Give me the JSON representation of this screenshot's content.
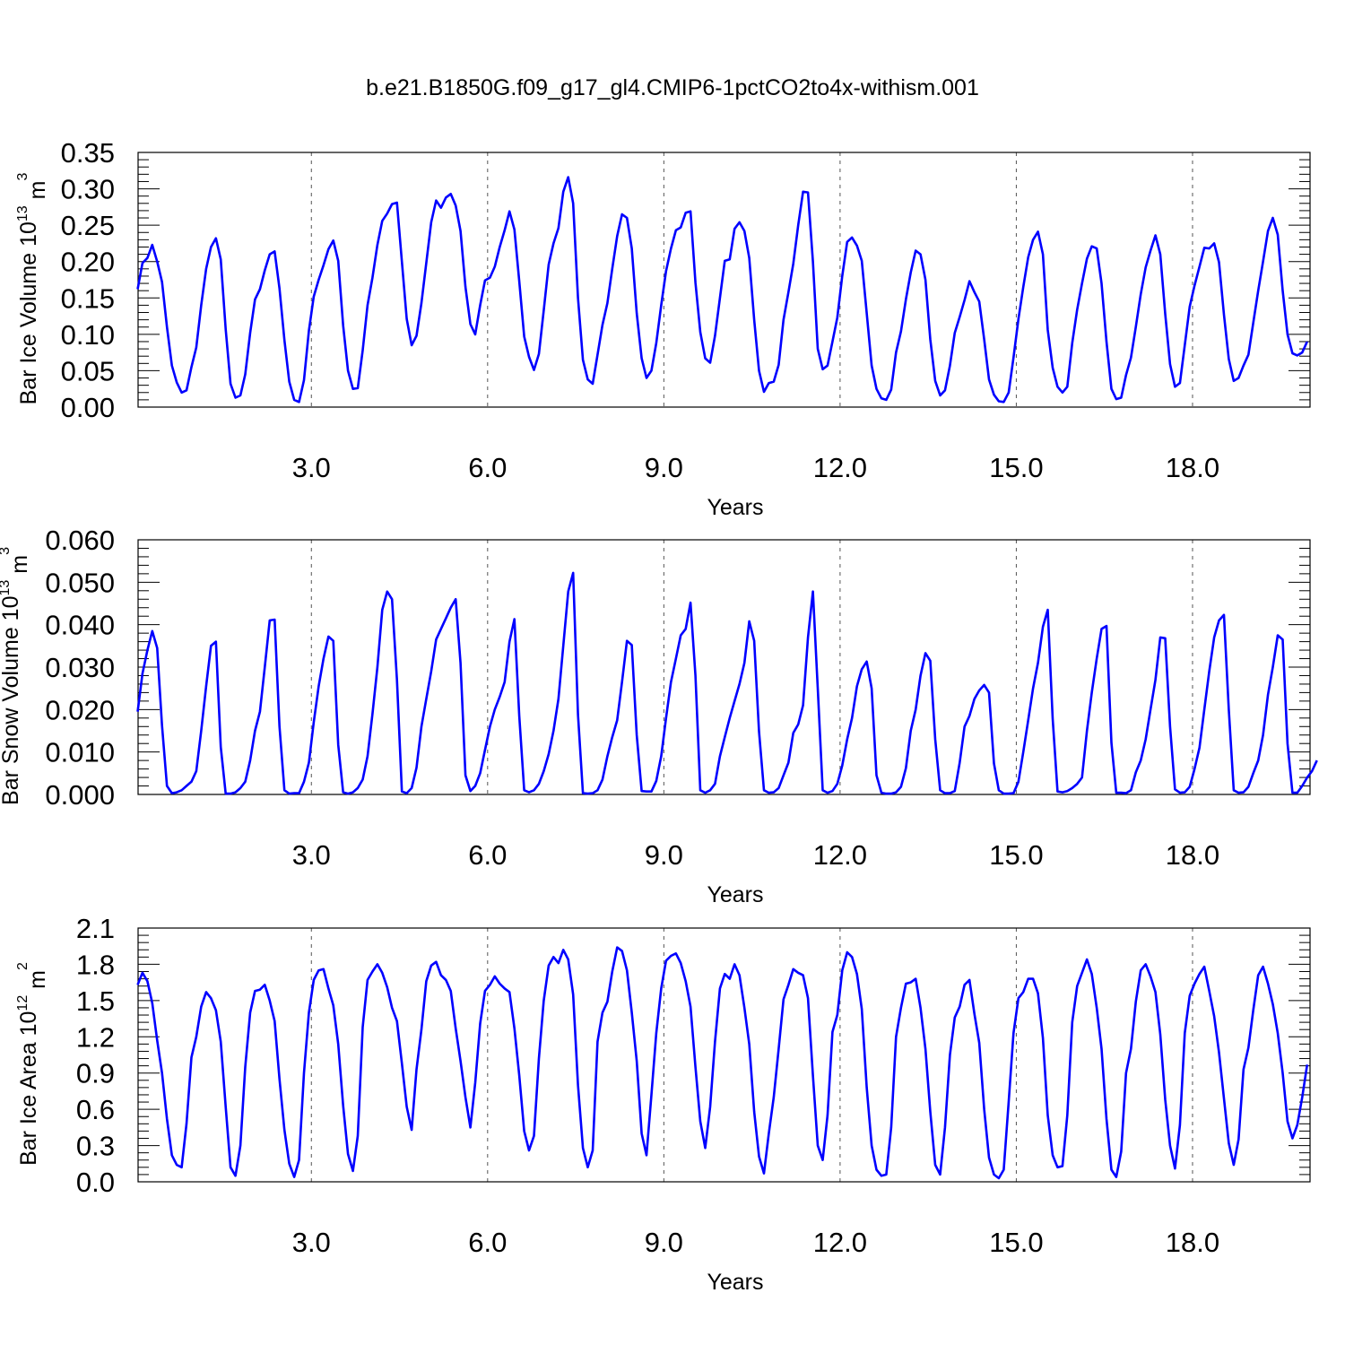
{
  "title": "b.e21.B1850G.f09_g17_gl4.CMIP6-1pctCO2to4x-withism.001",
  "colors": {
    "series": "#0000ff",
    "axis": "#000000",
    "grid": "#555555"
  },
  "chart_data": [
    {
      "type": "line",
      "xlabel": "Years",
      "ylabel": "Bar Ice Volume 10",
      "ylabel_exp": "13",
      "ylabel_unit": "m",
      "ylabel_unit_exp": "3",
      "xlim": [
        0.05,
        20.0
      ],
      "xticks": [
        "3.0",
        "6.0",
        "9.0",
        "12.0",
        "15.0",
        "18.0"
      ],
      "xtick_values": [
        3,
        6,
        9,
        12,
        15,
        18
      ],
      "ylim": [
        0,
        0.35
      ],
      "yticks": [
        "0.00",
        "0.05",
        "0.10",
        "0.15",
        "0.20",
        "0.25",
        "0.30",
        "0.35"
      ],
      "ytick_values": [
        0,
        0.05,
        0.1,
        0.15,
        0.2,
        0.25,
        0.3,
        0.35
      ],
      "grid": "dashed vertical lines at major x ticks",
      "series": [
        {
          "x_start": 0.0417,
          "x_step": 0.0833,
          "values": [
            0.162,
            0.198,
            0.205,
            0.223,
            0.2,
            0.172,
            0.11,
            0.057,
            0.034,
            0.02,
            0.023,
            0.055,
            0.082,
            0.14,
            0.19,
            0.22,
            0.232,
            0.203,
            0.107,
            0.032,
            0.013,
            0.016,
            0.045,
            0.102,
            0.148,
            0.162,
            0.188,
            0.21,
            0.214,
            0.163,
            0.092,
            0.035,
            0.01,
            0.007,
            0.037,
            0.105,
            0.152,
            0.175,
            0.195,
            0.217,
            0.229,
            0.201,
            0.112,
            0.05,
            0.025,
            0.026,
            0.078,
            0.14,
            0.178,
            0.223,
            0.256,
            0.266,
            0.279,
            0.281,
            0.2,
            0.121,
            0.085,
            0.098,
            0.143,
            0.198,
            0.254,
            0.284,
            0.274,
            0.288,
            0.293,
            0.277,
            0.242,
            0.165,
            0.114,
            0.1,
            0.14,
            0.174,
            0.178,
            0.193,
            0.22,
            0.243,
            0.269,
            0.244,
            0.173,
            0.097,
            0.069,
            0.051,
            0.073,
            0.133,
            0.196,
            0.225,
            0.246,
            0.296,
            0.316,
            0.28,
            0.15,
            0.065,
            0.038,
            0.032,
            0.072,
            0.113,
            0.143,
            0.19,
            0.235,
            0.265,
            0.26,
            0.218,
            0.129,
            0.067,
            0.04,
            0.05,
            0.088,
            0.14,
            0.187,
            0.218,
            0.243,
            0.247,
            0.267,
            0.269,
            0.171,
            0.103,
            0.067,
            0.061,
            0.098,
            0.15,
            0.201,
            0.203,
            0.245,
            0.254,
            0.242,
            0.205,
            0.12,
            0.05,
            0.021,
            0.033,
            0.035,
            0.058,
            0.12,
            0.158,
            0.197,
            0.25,
            0.296,
            0.295,
            0.2,
            0.08,
            0.052,
            0.057,
            0.09,
            0.123,
            0.18,
            0.227,
            0.233,
            0.222,
            0.201,
            0.129,
            0.057,
            0.025,
            0.012,
            0.01,
            0.024,
            0.075,
            0.104,
            0.148,
            0.185,
            0.215,
            0.21,
            0.175,
            0.093,
            0.036,
            0.016,
            0.023,
            0.057,
            0.102,
            0.124,
            0.147,
            0.173,
            0.158,
            0.145,
            0.093,
            0.038,
            0.017,
            0.008,
            0.007,
            0.02,
            0.068,
            0.121,
            0.165,
            0.206,
            0.23,
            0.241,
            0.21,
            0.106,
            0.054,
            0.028,
            0.02,
            0.028,
            0.088,
            0.134,
            0.17,
            0.204,
            0.221,
            0.218,
            0.17,
            0.09,
            0.025,
            0.011,
            0.013,
            0.044,
            0.068,
            0.11,
            0.155,
            0.192,
            0.215,
            0.236,
            0.21,
            0.128,
            0.059,
            0.028,
            0.033,
            0.085,
            0.138,
            0.167,
            0.193,
            0.219,
            0.218,
            0.225,
            0.199,
            0.127,
            0.066,
            0.036,
            0.04,
            0.057,
            0.072,
            0.116,
            0.16,
            0.2,
            0.242,
            0.26,
            0.237,
            0.16,
            0.1,
            0.074,
            0.071,
            0.075,
            0.09
          ]
        }
      ]
    },
    {
      "type": "line",
      "xlabel": "Years",
      "ylabel": "Bar Snow Volume 10",
      "ylabel_exp": "13",
      "ylabel_unit": "m",
      "ylabel_unit_exp": "3",
      "xlim": [
        0.05,
        20.0
      ],
      "xticks": [
        "3.0",
        "6.0",
        "9.0",
        "12.0",
        "15.0",
        "18.0"
      ],
      "xtick_values": [
        3,
        6,
        9,
        12,
        15,
        18
      ],
      "ylim": [
        0,
        0.06
      ],
      "yticks": [
        "0.000",
        "0.010",
        "0.020",
        "0.030",
        "0.040",
        "0.050",
        "0.060"
      ],
      "ytick_values": [
        0,
        0.01,
        0.02,
        0.03,
        0.04,
        0.05,
        0.06
      ],
      "grid": "dashed vertical lines at major x ticks",
      "series": [
        {
          "x_start": 0.0417,
          "x_step": 0.0833,
          "values": [
            0.0195,
            0.0285,
            0.034,
            0.0385,
            0.0345,
            0.0162,
            0.002,
            0.0003,
            0.0005,
            0.001,
            0.002,
            0.003,
            0.0055,
            0.015,
            0.0255,
            0.035,
            0.036,
            0.0112,
            0.0002,
            0.0002,
            0.0005,
            0.0015,
            0.003,
            0.008,
            0.015,
            0.0195,
            0.03,
            0.041,
            0.0412,
            0.016,
            0.001,
            0.0002,
            0.0003,
            0.0003,
            0.003,
            0.0075,
            0.017,
            0.0255,
            0.032,
            0.0372,
            0.0362,
            0.0117,
            0.0005,
            0.0002,
            0.0005,
            0.0015,
            0.0035,
            0.009,
            0.019,
            0.03,
            0.0435,
            0.0478,
            0.046,
            0.027,
            0.0007,
            0.0003,
            0.0015,
            0.0063,
            0.016,
            0.0225,
            0.029,
            0.0365,
            0.039,
            0.0415,
            0.044,
            0.046,
            0.031,
            0.0045,
            0.0008,
            0.002,
            0.005,
            0.0105,
            0.016,
            0.02,
            0.023,
            0.0265,
            0.036,
            0.0413,
            0.0185,
            0.001,
            0.0005,
            0.001,
            0.0025,
            0.0055,
            0.0095,
            0.015,
            0.0225,
            0.035,
            0.0478,
            0.0522,
            0.0188,
            0.0003,
            0.0002,
            0.0003,
            0.001,
            0.0035,
            0.009,
            0.0135,
            0.0175,
            0.0265,
            0.0362,
            0.0352,
            0.014,
            0.0008,
            0.0007,
            0.0007,
            0.0032,
            0.009,
            0.018,
            0.0265,
            0.032,
            0.0375,
            0.039,
            0.0452,
            0.028,
            0.001,
            0.0004,
            0.001,
            0.0025,
            0.009,
            0.0135,
            0.018,
            0.022,
            0.026,
            0.031,
            0.0408,
            0.0362,
            0.0148,
            0.001,
            0.0004,
            0.0005,
            0.0015,
            0.0045,
            0.0075,
            0.0145,
            0.0165,
            0.021,
            0.037,
            0.0478,
            0.025,
            0.001,
            0.0004,
            0.0008,
            0.0025,
            0.0068,
            0.013,
            0.018,
            0.0255,
            0.0295,
            0.0313,
            0.025,
            0.0045,
            0.0004,
            0.0002,
            0.0002,
            0.0005,
            0.0018,
            0.0062,
            0.015,
            0.02,
            0.028,
            0.0333,
            0.0315,
            0.013,
            0.001,
            0.0003,
            0.0003,
            0.0008,
            0.0075,
            0.016,
            0.0185,
            0.0225,
            0.0245,
            0.0258,
            0.024,
            0.0073,
            0.001,
            0.0002,
            0.0002,
            0.0003,
            0.003,
            0.01,
            0.0175,
            0.025,
            0.031,
            0.0395,
            0.0435,
            0.0178,
            0.0007,
            0.0005,
            0.0008,
            0.0015,
            0.0025,
            0.004,
            0.015,
            0.024,
            0.032,
            0.039,
            0.0397,
            0.0122,
            0.0004,
            0.0004,
            0.0003,
            0.001,
            0.0052,
            0.008,
            0.013,
            0.02,
            0.027,
            0.037,
            0.0368,
            0.016,
            0.0012,
            0.0004,
            0.0005,
            0.0018,
            0.006,
            0.011,
            0.02,
            0.029,
            0.037,
            0.041,
            0.0423,
            0.02,
            0.001,
            0.0004,
            0.0005,
            0.0018,
            0.005,
            0.008,
            0.014,
            0.0235,
            0.03,
            0.0375,
            0.0365,
            0.012,
            0.0004,
            0.0004,
            0.002,
            0.004,
            0.0055,
            0.008
          ]
        }
      ]
    },
    {
      "type": "line",
      "xlabel": "Years",
      "ylabel": "Bar Ice Area 10",
      "ylabel_exp": "12",
      "ylabel_unit": "m",
      "ylabel_unit_exp": "2",
      "xlim": [
        0.05,
        20.0
      ],
      "xticks": [
        "3.0",
        "6.0",
        "9.0",
        "12.0",
        "15.0",
        "18.0"
      ],
      "xtick_values": [
        3,
        6,
        9,
        12,
        15,
        18
      ],
      "ylim": [
        0,
        2.1
      ],
      "yticks": [
        "0.0",
        "0.3",
        "0.6",
        "0.9",
        "1.2",
        "1.5",
        "1.8",
        "2.1"
      ],
      "ytick_values": [
        0,
        0.3,
        0.6,
        0.9,
        1.2,
        1.5,
        1.8,
        2.1
      ],
      "grid": "dashed vertical lines at major x ticks",
      "series": [
        {
          "x_start": 0.0417,
          "x_step": 0.0833,
          "values": [
            1.63,
            1.73,
            1.66,
            1.48,
            1.17,
            0.9,
            0.52,
            0.22,
            0.14,
            0.12,
            0.48,
            1.03,
            1.2,
            1.45,
            1.57,
            1.52,
            1.42,
            1.16,
            0.62,
            0.12,
            0.05,
            0.3,
            0.95,
            1.4,
            1.58,
            1.59,
            1.63,
            1.5,
            1.33,
            0.85,
            0.43,
            0.15,
            0.04,
            0.18,
            0.9,
            1.4,
            1.67,
            1.75,
            1.76,
            1.6,
            1.46,
            1.14,
            0.63,
            0.23,
            0.09,
            0.38,
            1.28,
            1.67,
            1.74,
            1.8,
            1.73,
            1.61,
            1.44,
            1.33,
            0.98,
            0.62,
            0.43,
            0.93,
            1.26,
            1.66,
            1.79,
            1.82,
            1.71,
            1.67,
            1.58,
            1.27,
            1.0,
            0.7,
            0.45,
            0.82,
            1.31,
            1.58,
            1.63,
            1.7,
            1.64,
            1.6,
            1.57,
            1.27,
            0.88,
            0.42,
            0.26,
            0.38,
            1.02,
            1.5,
            1.79,
            1.86,
            1.81,
            1.92,
            1.84,
            1.55,
            0.8,
            0.28,
            0.12,
            0.26,
            1.16,
            1.4,
            1.49,
            1.74,
            1.94,
            1.91,
            1.75,
            1.4,
            1.0,
            0.4,
            0.22,
            0.72,
            1.23,
            1.6,
            1.83,
            1.87,
            1.89,
            1.81,
            1.66,
            1.45,
            0.95,
            0.5,
            0.28,
            0.62,
            1.16,
            1.6,
            1.72,
            1.68,
            1.8,
            1.71,
            1.44,
            1.14,
            0.58,
            0.21,
            0.07,
            0.4,
            0.7,
            1.1,
            1.51,
            1.63,
            1.76,
            1.73,
            1.71,
            1.52,
            0.88,
            0.3,
            0.18,
            0.55,
            1.24,
            1.38,
            1.75,
            1.9,
            1.86,
            1.72,
            1.43,
            0.78,
            0.3,
            0.1,
            0.05,
            0.06,
            0.45,
            1.2,
            1.44,
            1.64,
            1.65,
            1.68,
            1.44,
            1.1,
            0.58,
            0.14,
            0.06,
            0.45,
            1.05,
            1.36,
            1.45,
            1.63,
            1.67,
            1.39,
            1.15,
            0.6,
            0.2,
            0.06,
            0.03,
            0.1,
            0.66,
            1.23,
            1.52,
            1.57,
            1.68,
            1.68,
            1.56,
            1.19,
            0.55,
            0.22,
            0.12,
            0.13,
            0.55,
            1.32,
            1.62,
            1.73,
            1.84,
            1.72,
            1.44,
            1.1,
            0.52,
            0.1,
            0.04,
            0.25,
            0.9,
            1.1,
            1.49,
            1.75,
            1.8,
            1.7,
            1.57,
            1.22,
            0.68,
            0.3,
            0.11,
            0.47,
            1.23,
            1.54,
            1.64,
            1.72,
            1.78,
            1.58,
            1.37,
            1.07,
            0.69,
            0.32,
            0.14,
            0.35,
            0.93,
            1.11,
            1.42,
            1.71,
            1.78,
            1.64,
            1.47,
            1.23,
            0.9,
            0.5,
            0.36,
            0.47,
            0.7,
            0.97
          ]
        }
      ]
    }
  ]
}
